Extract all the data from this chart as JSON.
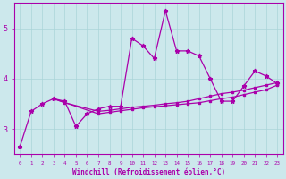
{
  "xlabel": "Windchill (Refroidissement éolien,°C)",
  "background_color": "#cce8ec",
  "grid_color": "#aad4d8",
  "line_color": "#aa00aa",
  "x_values": [
    0,
    1,
    2,
    3,
    4,
    5,
    6,
    7,
    8,
    9,
    10,
    11,
    12,
    13,
    14,
    15,
    16,
    17,
    18,
    19,
    20,
    21,
    22,
    23
  ],
  "line1_y": [
    2.65,
    3.35,
    3.5,
    3.6,
    3.55,
    3.05,
    3.3,
    3.4,
    3.45,
    3.45,
    4.8,
    4.65,
    4.4,
    5.35,
    4.55,
    4.55,
    4.45,
    4.0,
    3.55,
    3.55,
    3.85,
    4.15,
    4.05,
    3.9
  ],
  "line2_y": [
    null,
    null,
    null,
    3.6,
    3.52,
    null,
    null,
    3.35,
    3.37,
    3.4,
    3.43,
    3.45,
    3.47,
    3.5,
    3.52,
    3.55,
    3.6,
    3.65,
    3.7,
    3.73,
    3.77,
    3.82,
    3.87,
    3.92
  ],
  "line3_y": [
    null,
    null,
    null,
    3.6,
    null,
    null,
    null,
    3.3,
    3.33,
    3.36,
    3.39,
    3.42,
    3.44,
    3.46,
    3.48,
    3.5,
    3.52,
    3.56,
    3.6,
    3.63,
    3.68,
    3.73,
    3.78,
    3.87
  ],
  "ylim": [
    2.5,
    5.5
  ],
  "yticks": [
    3,
    4,
    5
  ],
  "xlim": [
    -0.5,
    23.5
  ]
}
